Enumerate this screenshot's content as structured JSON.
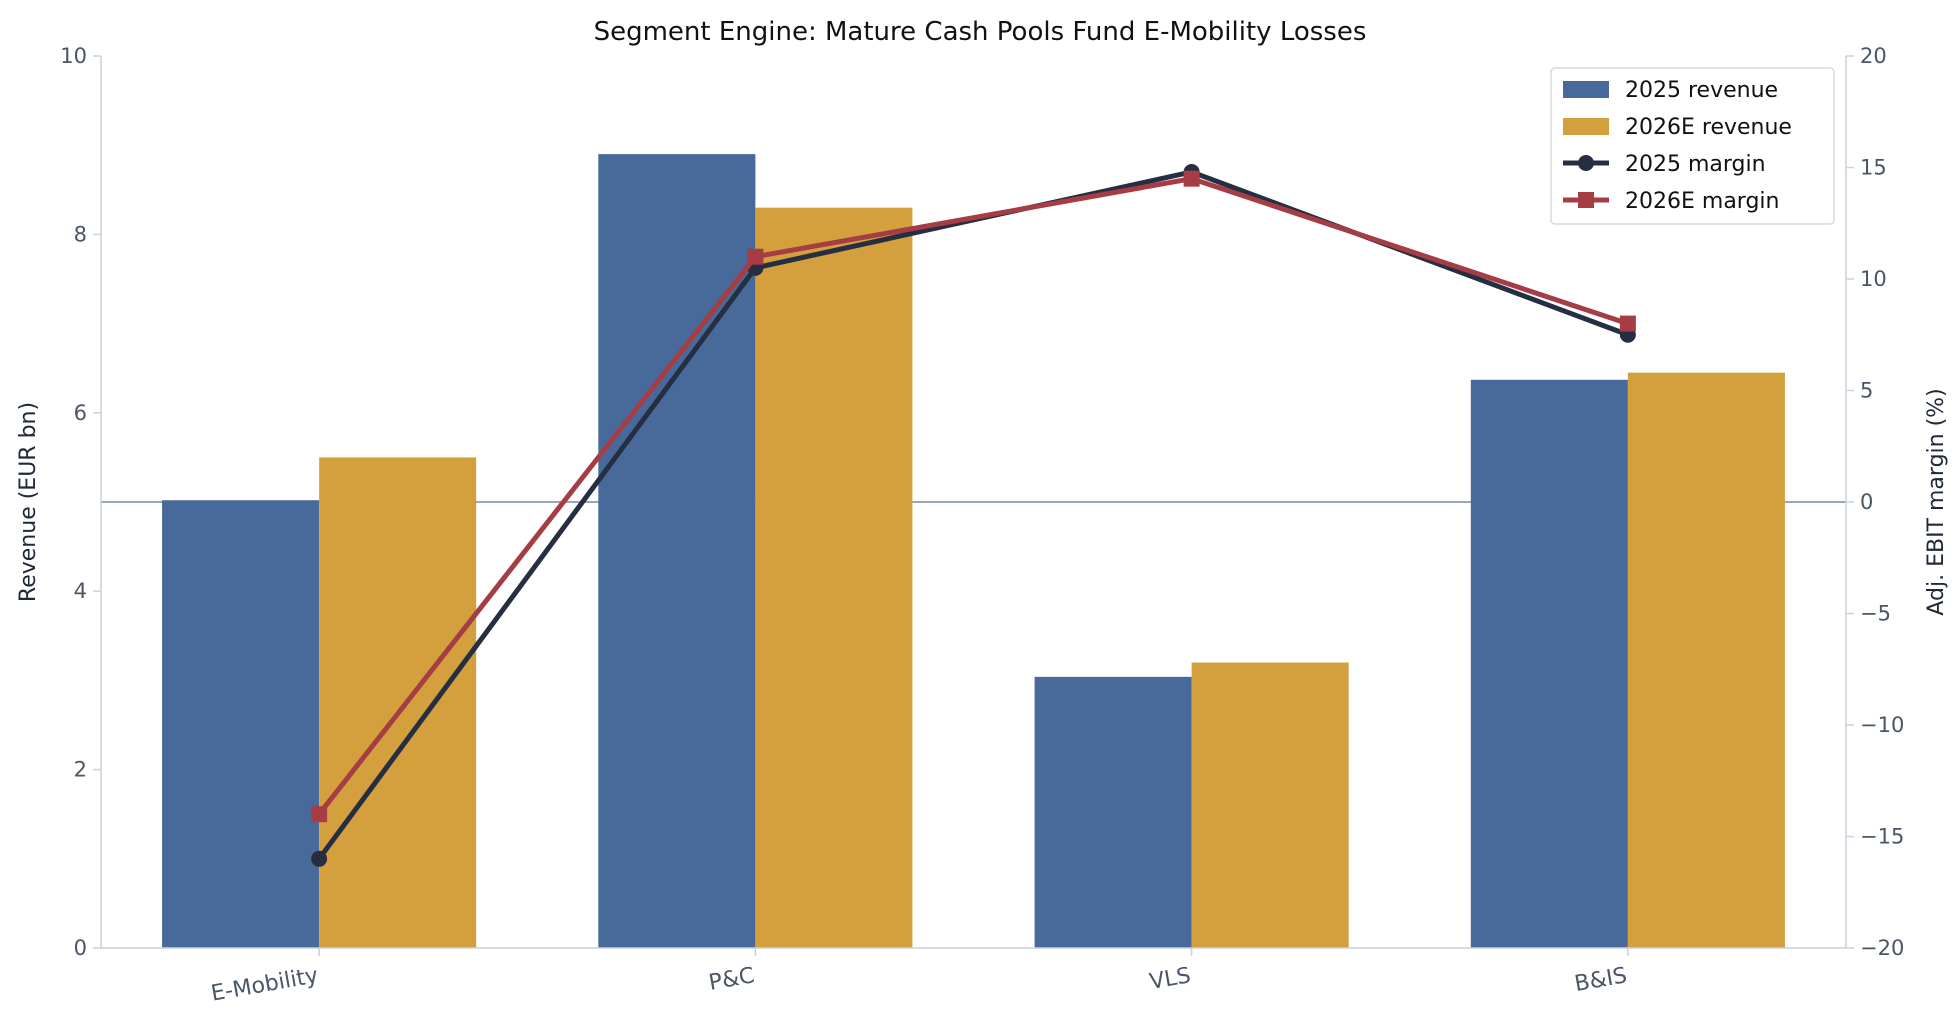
{
  "chart_data": {
    "type": "bar+line",
    "title": "Segment Engine: Mature Cash Pools Fund E-Mobility Losses",
    "categories": [
      "E-Mobility",
      "P&C",
      "VLS",
      "B&IS"
    ],
    "bar_series": [
      {
        "name": "2025 revenue",
        "color": "#476a9a",
        "values": [
          5.02,
          8.9,
          3.04,
          6.37
        ]
      },
      {
        "name": "2026E revenue",
        "color": "#d4a03e",
        "values": [
          5.5,
          8.3,
          3.2,
          6.45
        ]
      }
    ],
    "line_series": [
      {
        "name": "2025 margin",
        "color": "#262e42",
        "marker": "circle",
        "values": [
          -16.0,
          10.5,
          14.8,
          7.5
        ]
      },
      {
        "name": "2026E margin",
        "color": "#a63c44",
        "marker": "square",
        "values": [
          -14.0,
          11.0,
          14.5,
          8.0
        ]
      }
    ],
    "ylabel": "Revenue (EUR bn)",
    "y2label": "Adj. EBIT margin (%)",
    "ylim": [
      0,
      10
    ],
    "y2lim": [
      -20,
      20
    ],
    "yticks": [
      "0",
      "2",
      "4",
      "6",
      "8",
      "10"
    ],
    "y2ticks": [
      "−20",
      "−15",
      "−10",
      "−5",
      "0",
      "5",
      "10",
      "15",
      "20"
    ],
    "y2_reference_line": 0,
    "legend_position": "top-right",
    "grid": false
  }
}
